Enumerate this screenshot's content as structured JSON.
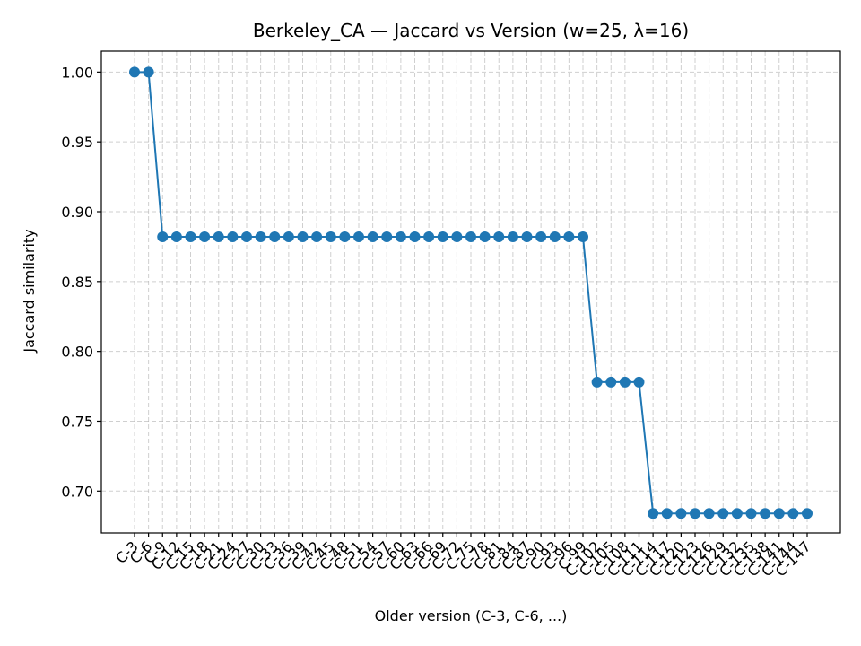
{
  "chart_data": {
    "type": "line",
    "title": "Berkeley_CA — Jaccard vs Version (w=25, λ=16)",
    "xlabel": "Older version (C-3, C-6, ...)",
    "ylabel": "Jaccard similarity",
    "ylim": [
      0.67,
      1.015
    ],
    "yticks": [
      0.7,
      0.75,
      0.8,
      0.85,
      0.9,
      0.95,
      1.0
    ],
    "ytick_labels": [
      "0.70",
      "0.75",
      "0.80",
      "0.85",
      "0.90",
      "0.95",
      "1.00"
    ],
    "grid": true,
    "color": "#1f77b4",
    "categories": [
      "C-3",
      "C-6",
      "C-9",
      "C-12",
      "C-15",
      "C-18",
      "C-21",
      "C-24",
      "C-27",
      "C-30",
      "C-33",
      "C-36",
      "C-39",
      "C-42",
      "C-45",
      "C-48",
      "C-51",
      "C-54",
      "C-57",
      "C-60",
      "C-63",
      "C-66",
      "C-69",
      "C-72",
      "C-75",
      "C-78",
      "C-81",
      "C-84",
      "C-87",
      "C-90",
      "C-93",
      "C-96",
      "C-99",
      "C-102",
      "C-105",
      "C-108",
      "C-111",
      "C-114",
      "C-117",
      "C-120",
      "C-123",
      "C-126",
      "C-129",
      "C-132",
      "C-135",
      "C-138",
      "C-141",
      "C-144",
      "C-147"
    ],
    "series": [
      {
        "values": [
          1.0,
          1.0,
          0.882,
          0.882,
          0.882,
          0.882,
          0.882,
          0.882,
          0.882,
          0.882,
          0.882,
          0.882,
          0.882,
          0.882,
          0.882,
          0.882,
          0.882,
          0.882,
          0.882,
          0.882,
          0.882,
          0.882,
          0.882,
          0.882,
          0.882,
          0.882,
          0.882,
          0.882,
          0.882,
          0.882,
          0.882,
          0.882,
          0.882,
          0.778,
          0.778,
          0.778,
          0.778,
          0.684,
          0.684,
          0.684,
          0.684,
          0.684,
          0.684,
          0.684,
          0.684,
          0.684,
          0.684,
          0.684,
          0.684
        ]
      }
    ]
  }
}
